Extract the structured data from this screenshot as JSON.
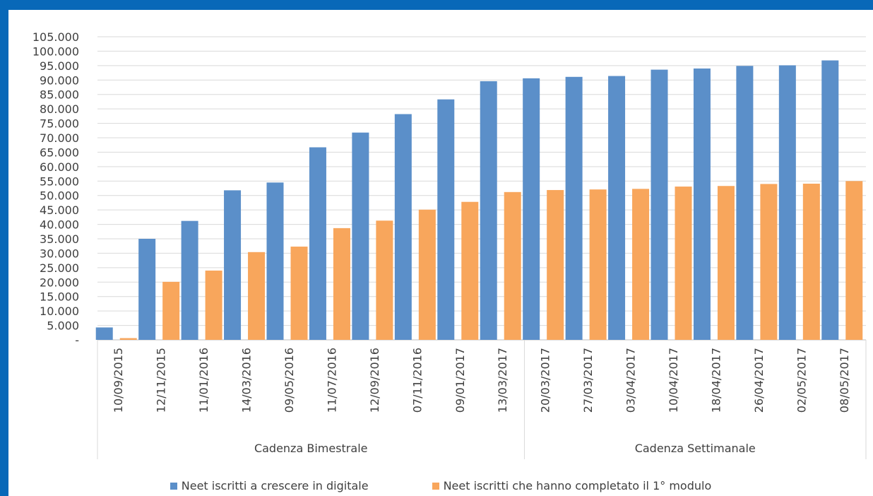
{
  "chart_data": {
    "type": "bar",
    "categories": [
      "10/09/2015",
      "12/11/2015",
      "11/01/2016",
      "14/03/2016",
      "09/05/2016",
      "11/07/2016",
      "12/09/2016",
      "07/11/2016",
      "09/01/2017",
      "13/03/2017",
      "20/03/2017",
      "27/03/2017",
      "03/04/2017",
      "10/04/2017",
      "18/04/2017",
      "26/04/2017",
      "02/05/2017",
      "08/05/2017"
    ],
    "groups": [
      {
        "label": "Cadenza Bimestrale",
        "count": 10
      },
      {
        "label": "Cadenza Settimanale",
        "count": 8
      }
    ],
    "series": [
      {
        "name": "Neet iscritti a crescere in digitale",
        "color": "#5b8fc9",
        "values": [
          4300,
          35000,
          41200,
          51800,
          54500,
          66700,
          71800,
          78200,
          83300,
          89600,
          90600,
          91100,
          91400,
          93600,
          94000,
          94900,
          95100,
          96800
        ]
      },
      {
        "name": "Neet iscritti che hanno completato il 1° modulo",
        "color": "#f8a65c",
        "values": [
          600,
          20100,
          24000,
          30400,
          32300,
          38700,
          41300,
          45100,
          47800,
          51200,
          51900,
          52100,
          52300,
          53100,
          53300,
          54000,
          54100,
          55000
        ]
      }
    ],
    "yticks": [
      "-",
      "5.000",
      "10.000",
      "15.000",
      "20.000",
      "25.000",
      "30.000",
      "35.000",
      "40.000",
      "45.000",
      "50.000",
      "55.000",
      "60.000",
      "65.000",
      "70.000",
      "75.000",
      "80.000",
      "85.000",
      "90.000",
      "95.000",
      "100.000",
      "105.000"
    ],
    "ylim": [
      0,
      105000
    ],
    "ytick_step": 5000,
    "grid": true,
    "legend_position": "bottom"
  }
}
